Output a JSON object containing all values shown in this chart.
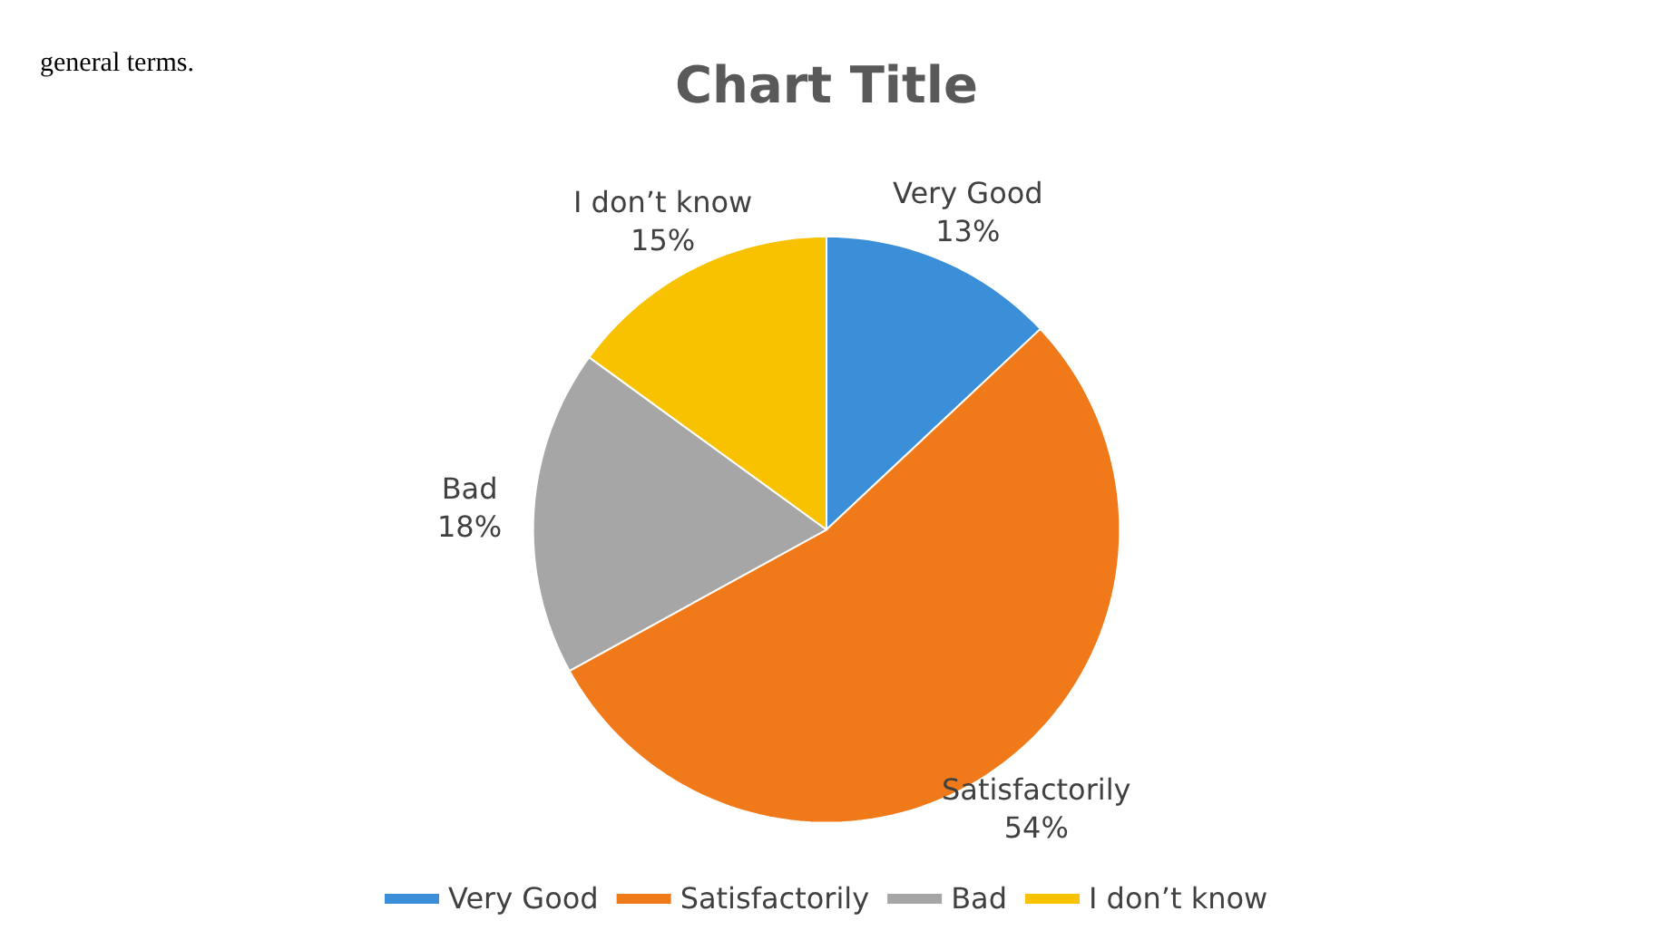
{
  "chart_data": {
    "type": "pie",
    "title": "Chart Title",
    "categories": [
      "Very Good",
      "Satisfactorily",
      "Bad",
      "I don’t know"
    ],
    "values": [
      13,
      54,
      18,
      15
    ],
    "value_labels": [
      "13%",
      "54%",
      "18%",
      "15%"
    ],
    "colors": [
      "#3a8fd8",
      "#f07a1a",
      "#a6a6a6",
      "#f8c200"
    ],
    "legend": "bottom",
    "annotations": [
      "general terms."
    ]
  }
}
